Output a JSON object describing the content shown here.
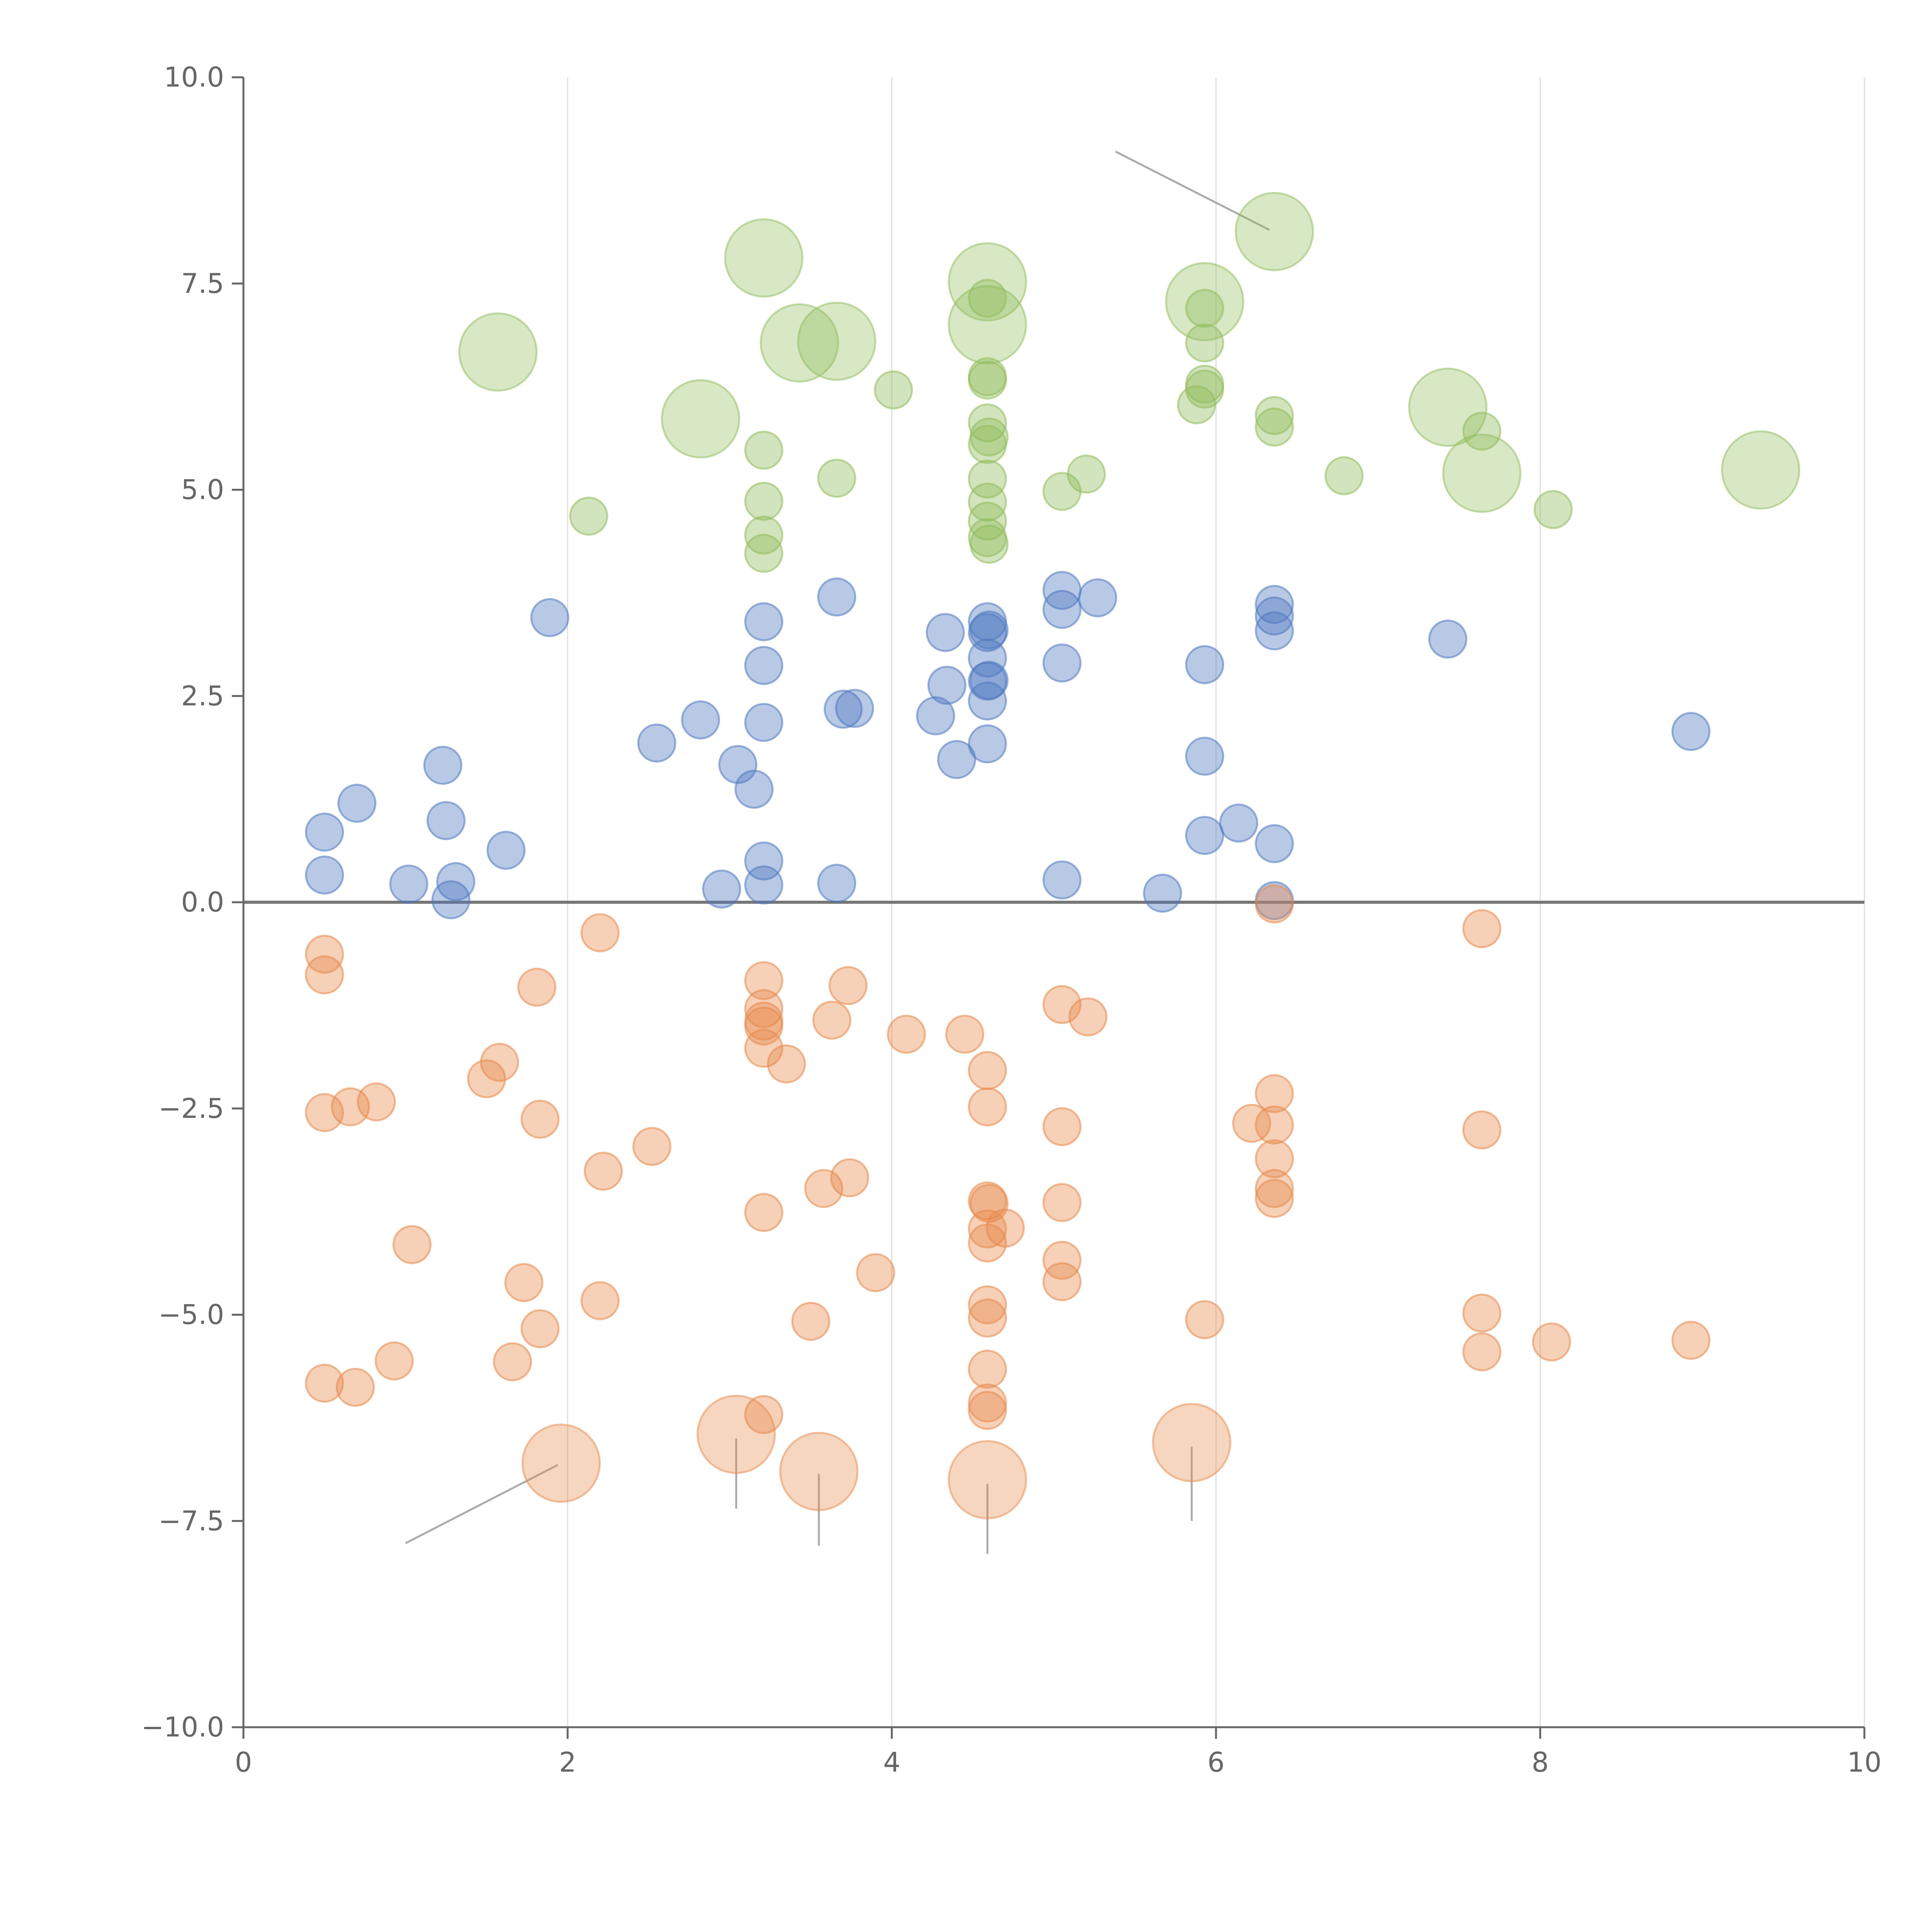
{
  "chart_data": {
    "type": "scatter",
    "title": "",
    "xlabel": "",
    "ylabel": "",
    "xlim": [
      0,
      10
    ],
    "ylim": [
      -10,
      10
    ],
    "x_ticks": [
      "0",
      "2",
      "4",
      "6",
      "8",
      "10"
    ],
    "y_ticks": [
      "−10.0",
      "−7.5",
      "−5.0",
      "−2.5",
      "0.0",
      "2.5",
      "5.0",
      "7.5",
      "10.0"
    ],
    "x_tick_values": [
      0,
      2,
      4,
      6,
      8,
      10
    ],
    "y_tick_values": [
      -10,
      -7.5,
      -5,
      -2.5,
      0,
      2.5,
      5,
      7.5,
      10
    ],
    "grid": "vertical",
    "reference_line_y": 0,
    "colors": {
      "blue": "#4e79c0",
      "orange": "#e8894a",
      "green": "#8fbc5a"
    },
    "series": [
      {
        "color": "#4e79c0",
        "points": [
          [
            0.5,
            0.85
          ],
          [
            0.5,
            0.33
          ],
          [
            0.7,
            1.2
          ],
          [
            1.02,
            0.22
          ],
          [
            1.23,
            1.66
          ],
          [
            1.25,
            0.99
          ],
          [
            1.28,
            0.03
          ],
          [
            1.31,
            0.25
          ],
          [
            1.62,
            0.63
          ],
          [
            1.89,
            3.45
          ],
          [
            2.55,
            1.93
          ],
          [
            2.82,
            2.21
          ],
          [
            2.95,
            0.16
          ],
          [
            3.05,
            1.67
          ],
          [
            3.15,
            1.37
          ],
          [
            3.21,
            3.4
          ],
          [
            3.21,
            2.87
          ],
          [
            3.21,
            2.18
          ],
          [
            3.21,
            0.5
          ],
          [
            3.21,
            0.21
          ],
          [
            3.66,
            3.7
          ],
          [
            3.66,
            0.23
          ],
          [
            3.7,
            2.34
          ],
          [
            3.77,
            2.35
          ],
          [
            4.27,
            2.26
          ],
          [
            4.33,
            3.27
          ],
          [
            4.34,
            2.63
          ],
          [
            4.4,
            1.73
          ],
          [
            4.59,
            3.4
          ],
          [
            4.59,
            3.27
          ],
          [
            4.59,
            2.96
          ],
          [
            4.59,
            2.68
          ],
          [
            4.59,
            2.44
          ],
          [
            4.59,
            1.92
          ],
          [
            4.6,
            3.3
          ],
          [
            4.6,
            2.69
          ],
          [
            5.05,
            3.78
          ],
          [
            5.05,
            3.55
          ],
          [
            5.05,
            2.9
          ],
          [
            5.05,
            0.27
          ],
          [
            5.27,
            3.69
          ],
          [
            5.67,
            0.11
          ],
          [
            5.93,
            2.88
          ],
          [
            5.93,
            1.77
          ],
          [
            5.93,
            0.81
          ],
          [
            6.14,
            0.96
          ],
          [
            6.36,
            3.61
          ],
          [
            6.36,
            3.47
          ],
          [
            6.36,
            3.29
          ],
          [
            6.36,
            0.71
          ],
          [
            6.36,
            0.02
          ],
          [
            7.43,
            3.19
          ],
          [
            8.93,
            2.07
          ]
        ]
      },
      {
        "color": "#e8894a",
        "points": [
          [
            0.5,
            -0.63
          ],
          [
            0.5,
            -0.88
          ],
          [
            0.5,
            -2.55
          ],
          [
            0.5,
            -5.83
          ],
          [
            0.66,
            -2.48
          ],
          [
            0.69,
            -5.88
          ],
          [
            0.82,
            -2.42
          ],
          [
            0.93,
            -5.56
          ],
          [
            1.04,
            -4.15
          ],
          [
            1.5,
            -2.14
          ],
          [
            1.58,
            -1.94
          ],
          [
            1.66,
            -5.57
          ],
          [
            1.73,
            -4.61
          ],
          [
            1.81,
            -1.03
          ],
          [
            1.83,
            -5.17
          ],
          [
            1.83,
            -2.63
          ],
          [
            2.2,
            -0.37
          ],
          [
            2.2,
            -4.83
          ],
          [
            2.22,
            -3.26
          ],
          [
            2.52,
            -2.96
          ],
          [
            3.21,
            -0.95
          ],
          [
            3.21,
            -1.29
          ],
          [
            3.21,
            -1.44
          ],
          [
            3.21,
            -1.5
          ],
          [
            3.21,
            -1.77
          ],
          [
            3.21,
            -3.76
          ],
          [
            3.21,
            -6.21
          ],
          [
            3.35,
            -1.96
          ],
          [
            3.5,
            -5.08
          ],
          [
            3.58,
            -3.47
          ],
          [
            3.63,
            -1.43
          ],
          [
            3.73,
            -1.01
          ],
          [
            3.74,
            -3.34
          ],
          [
            3.9,
            -4.49
          ],
          [
            4.09,
            -1.6
          ],
          [
            4.45,
            -1.6
          ],
          [
            4.59,
            -2.04
          ],
          [
            4.59,
            -2.48
          ],
          [
            4.59,
            -3.62
          ],
          [
            4.59,
            -3.96
          ],
          [
            4.59,
            -4.13
          ],
          [
            4.59,
            -4.88
          ],
          [
            4.59,
            -5.04
          ],
          [
            4.59,
            -5.66
          ],
          [
            4.59,
            -6.07
          ],
          [
            4.59,
            -6.16
          ],
          [
            4.6,
            -3.65
          ],
          [
            4.7,
            -3.95
          ],
          [
            5.05,
            -1.24
          ],
          [
            5.05,
            -2.72
          ],
          [
            5.05,
            -3.64
          ],
          [
            5.05,
            -4.34
          ],
          [
            5.05,
            -4.6
          ],
          [
            5.21,
            -1.39
          ],
          [
            5.93,
            -5.06
          ],
          [
            6.22,
            -2.68
          ],
          [
            6.36,
            -0.02
          ],
          [
            6.36,
            -2.32
          ],
          [
            6.36,
            -2.7
          ],
          [
            6.36,
            -3.11
          ],
          [
            6.36,
            -3.47
          ],
          [
            6.36,
            -3.59
          ],
          [
            7.64,
            -0.32
          ],
          [
            7.64,
            -2.76
          ],
          [
            7.64,
            -4.98
          ],
          [
            7.64,
            -5.45
          ],
          [
            8.07,
            -5.33
          ],
          [
            8.93,
            -5.31
          ]
        ]
      },
      {
        "color": "#8fbc5a",
        "points": [
          [
            2.13,
            4.68
          ],
          [
            3.21,
            5.48
          ],
          [
            3.21,
            4.86
          ],
          [
            3.21,
            4.45
          ],
          [
            3.21,
            4.23
          ],
          [
            3.66,
            5.14
          ],
          [
            4.01,
            6.21
          ],
          [
            4.59,
            7.32
          ],
          [
            4.59,
            6.37
          ],
          [
            4.59,
            6.33
          ],
          [
            4.59,
            5.81
          ],
          [
            4.59,
            5.55
          ],
          [
            4.59,
            5.13
          ],
          [
            4.59,
            4.85
          ],
          [
            4.59,
            4.62
          ],
          [
            4.59,
            4.42
          ],
          [
            4.6,
            5.64
          ],
          [
            4.6,
            4.34
          ],
          [
            5.05,
            4.98
          ],
          [
            5.2,
            5.19
          ],
          [
            5.88,
            6.03
          ],
          [
            5.93,
            7.2
          ],
          [
            5.93,
            6.78
          ],
          [
            5.93,
            6.28
          ],
          [
            5.93,
            6.22
          ],
          [
            6.36,
            5.9
          ],
          [
            6.36,
            5.76
          ],
          [
            6.79,
            5.17
          ],
          [
            7.64,
            5.71
          ],
          [
            8.08,
            4.76
          ]
        ]
      }
    ],
    "large_points": [
      {
        "color": "#8fbc5a",
        "x": 1.57,
        "y": 6.67,
        "size": 2
      },
      {
        "color": "#8fbc5a",
        "x": 2.82,
        "y": 5.86,
        "size": 2
      },
      {
        "color": "#8fbc5a",
        "x": 3.21,
        "y": 7.81,
        "size": 2
      },
      {
        "color": "#8fbc5a",
        "x": 3.43,
        "y": 6.78,
        "size": 2
      },
      {
        "color": "#8fbc5a",
        "x": 3.66,
        "y": 6.8,
        "size": 2
      },
      {
        "color": "#8fbc5a",
        "x": 4.59,
        "y": 7.52,
        "size": 2
      },
      {
        "color": "#8fbc5a",
        "x": 4.59,
        "y": 7.0,
        "size": 2
      },
      {
        "color": "#8fbc5a",
        "x": 5.93,
        "y": 7.28,
        "size": 2
      },
      {
        "color": "#8fbc5a",
        "x": 6.36,
        "y": 8.13,
        "size": 2
      },
      {
        "color": "#8fbc5a",
        "x": 7.43,
        "y": 6.0,
        "size": 2
      },
      {
        "color": "#8fbc5a",
        "x": 7.64,
        "y": 5.2,
        "size": 2
      },
      {
        "color": "#8fbc5a",
        "x": 9.36,
        "y": 5.24,
        "size": 2
      },
      {
        "color": "#e8894a",
        "x": 1.96,
        "y": -6.8,
        "size": 2
      },
      {
        "color": "#e8894a",
        "x": 3.04,
        "y": -6.45,
        "size": 2
      },
      {
        "color": "#e8894a",
        "x": 3.55,
        "y": -6.9,
        "size": 2
      },
      {
        "color": "#e8894a",
        "x": 4.59,
        "y": -7.0,
        "size": 2
      },
      {
        "color": "#e8894a",
        "x": 5.85,
        "y": -6.55,
        "size": 2
      }
    ],
    "leader_lines": [
      {
        "from": [
          6.33,
          8.15
        ],
        "to": [
          5.38,
          9.1
        ]
      },
      {
        "from": [
          1.94,
          -6.82
        ],
        "to": [
          1.0,
          -7.77
        ]
      },
      {
        "from": [
          3.04,
          -6.5
        ],
        "to": [
          3.04,
          -7.35
        ]
      },
      {
        "from": [
          3.55,
          -6.93
        ],
        "to": [
          3.55,
          -7.8
        ]
      },
      {
        "from": [
          4.59,
          -7.05
        ],
        "to": [
          4.59,
          -7.9
        ]
      },
      {
        "from": [
          5.85,
          -6.6
        ],
        "to": [
          5.85,
          -7.5
        ]
      }
    ]
  }
}
